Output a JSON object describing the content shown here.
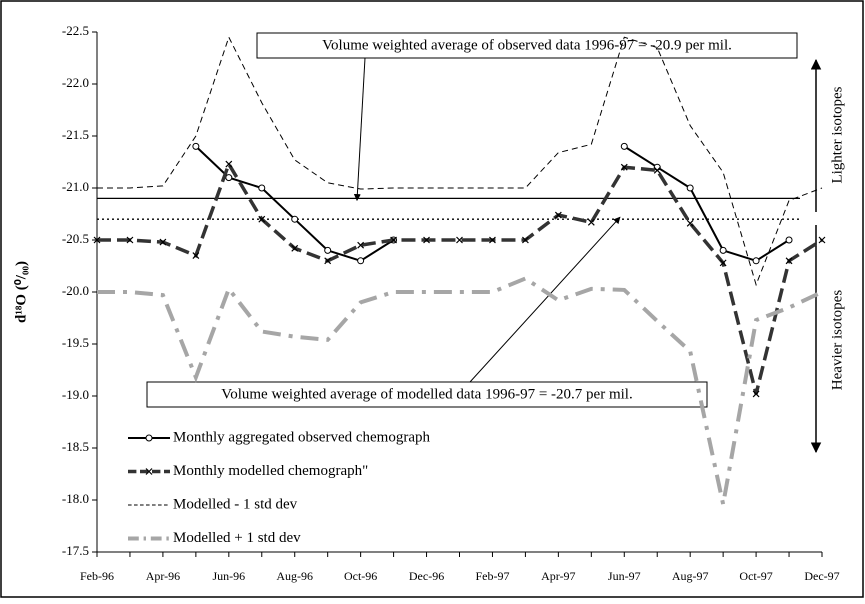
{
  "chart_data": {
    "type": "line",
    "y_label": "d¹⁸O (⁰/₀₀)",
    "categories": [
      "Feb-96",
      null,
      "Apr-96",
      null,
      "Jun-96",
      null,
      "Aug-96",
      null,
      "Oct-96",
      null,
      "Dec-96",
      null,
      "Feb-97",
      null,
      "Apr-97",
      null,
      "Jun-97",
      null,
      "Aug-97",
      null,
      "Oct-97",
      null,
      "Dec-97"
    ],
    "ylim": [
      -17.5,
      -22.5
    ],
    "yticks": [
      -22.5,
      {
        "value": -22,
        "label": "-22.0"
      },
      -21.5,
      {
        "value": -21,
        "label": "-21.0"
      },
      -20.5,
      {
        "value": -20,
        "label": "-20.0"
      },
      -19.5,
      {
        "value": -19,
        "label": "-19.0"
      },
      -18.5,
      {
        "value": -18,
        "label": "-18.0"
      },
      -17.5
    ],
    "series": [
      {
        "name": "Monthly aggregated observed chemograph",
        "color": "#000000",
        "values": [
          null,
          null,
          null,
          -21.4,
          -21.1,
          -21.0,
          -20.7,
          -20.4,
          -20.3,
          -20.5,
          null,
          null,
          null,
          null,
          null,
          null,
          -21.4,
          -21.2,
          -21.0,
          -20.4,
          -20.3,
          -20.5,
          null
        ]
      },
      {
        "name": "Monthly modelled chemograph\"",
        "color": "#333333",
        "values": [
          -20.5,
          -20.5,
          -20.48,
          -20.35,
          -21.23,
          -20.7,
          -20.42,
          -20.3,
          -20.45,
          -20.5,
          -20.5,
          -20.5,
          -20.5,
          -20.5,
          -20.74,
          -20.67,
          -21.2,
          -21.17,
          -20.66,
          -20.28,
          -19.02,
          -20.3,
          -20.5
        ]
      },
      {
        "name": "Modelled - 1 std dev",
        "color": "#000000",
        "values": [
          -21.0,
          -21.0,
          -21.02,
          -21.5,
          -22.45,
          -21.82,
          -21.27,
          -21.05,
          -20.99,
          -21.0,
          -21.0,
          -21.0,
          -21.0,
          -21.0,
          -21.34,
          -21.42,
          -22.45,
          -22.35,
          -21.6,
          -21.15,
          -20.07,
          -20.88,
          -21.0
        ]
      },
      {
        "name": "Modelled + 1 std dev",
        "color": "#a6a6a6",
        "values": [
          -20.0,
          -20.0,
          -19.97,
          -19.18,
          -20.03,
          -19.62,
          -19.57,
          -19.54,
          -19.9,
          -20.0,
          -20.0,
          -20.0,
          -20.0,
          -20.13,
          -19.92,
          -20.03,
          -20.02,
          -19.72,
          -19.43,
          -17.96,
          -19.73,
          -19.85,
          -20.0
        ]
      }
    ],
    "reference_lines": [
      {
        "label": "Volume weighted average of observed data 1996-97 = -20.9 per mil.",
        "value": -20.9
      },
      {
        "label": "Volume weighted average of modelled data 1996-97 = -20.7 per mil.",
        "value": -20.7
      }
    ],
    "side_labels": [
      "Lighter isotopes",
      "Heavier isotopes"
    ]
  }
}
